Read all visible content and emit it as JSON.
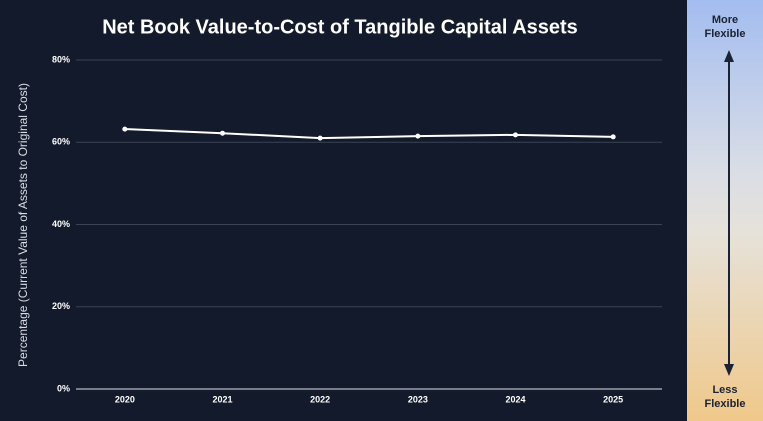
{
  "chart_data": {
    "type": "line",
    "title": "Net Book Value-to-Cost of Tangible Capital Assets",
    "y_label": "Percentage (Current Value of Assets to Original Cost)",
    "categories": [
      "2020",
      "2021",
      "2022",
      "2023",
      "2024",
      "2025"
    ],
    "values": [
      63.2,
      62.2,
      61.0,
      61.5,
      61.8,
      61.3
    ],
    "color": "#ffffff",
    "ylim": [
      0,
      80
    ],
    "yticks": [
      {
        "value": 0,
        "label": "0%"
      },
      {
        "value": 20,
        "label": "20%"
      },
      {
        "value": 40,
        "label": "40%"
      },
      {
        "value": 60,
        "label": "60%"
      },
      {
        "value": 80,
        "label": "80%"
      }
    ],
    "grid": true
  },
  "scale_labels": {
    "top": "More Flexible",
    "bottom": "Less Flexible"
  }
}
